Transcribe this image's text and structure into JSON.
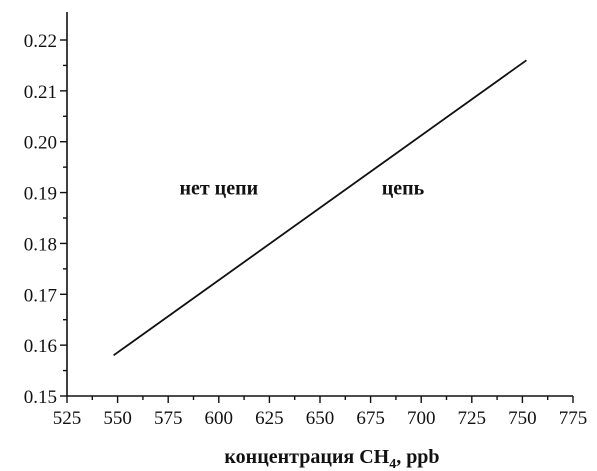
{
  "chart_data": {
    "type": "line",
    "x_ticks": [
      525,
      550,
      575,
      600,
      625,
      650,
      675,
      700,
      725,
      750,
      775
    ],
    "y_ticks": [
      0.15,
      0.16,
      0.17,
      0.18,
      0.19,
      0.2,
      0.21,
      0.22
    ],
    "y_tick_labels": [
      "0.15",
      "0.16",
      "0.17",
      "0.18",
      "0.19",
      "0.20",
      "0.21",
      "0.22"
    ],
    "xlim": [
      525,
      775
    ],
    "ylim": [
      0.15,
      0.225
    ],
    "xlabel": {
      "main": "концентрация CH",
      "sub": "4",
      "unit": ", ppb"
    },
    "ylabel": "",
    "grid": false,
    "series": [
      {
        "x": [
          548,
          752
        ],
        "y": [
          0.158,
          0.216
        ]
      }
    ],
    "annotations": [
      {
        "text": "нет цепи",
        "x": 600,
        "y": 0.191
      },
      {
        "text": "цепь",
        "x": 691,
        "y": 0.191
      }
    ]
  }
}
